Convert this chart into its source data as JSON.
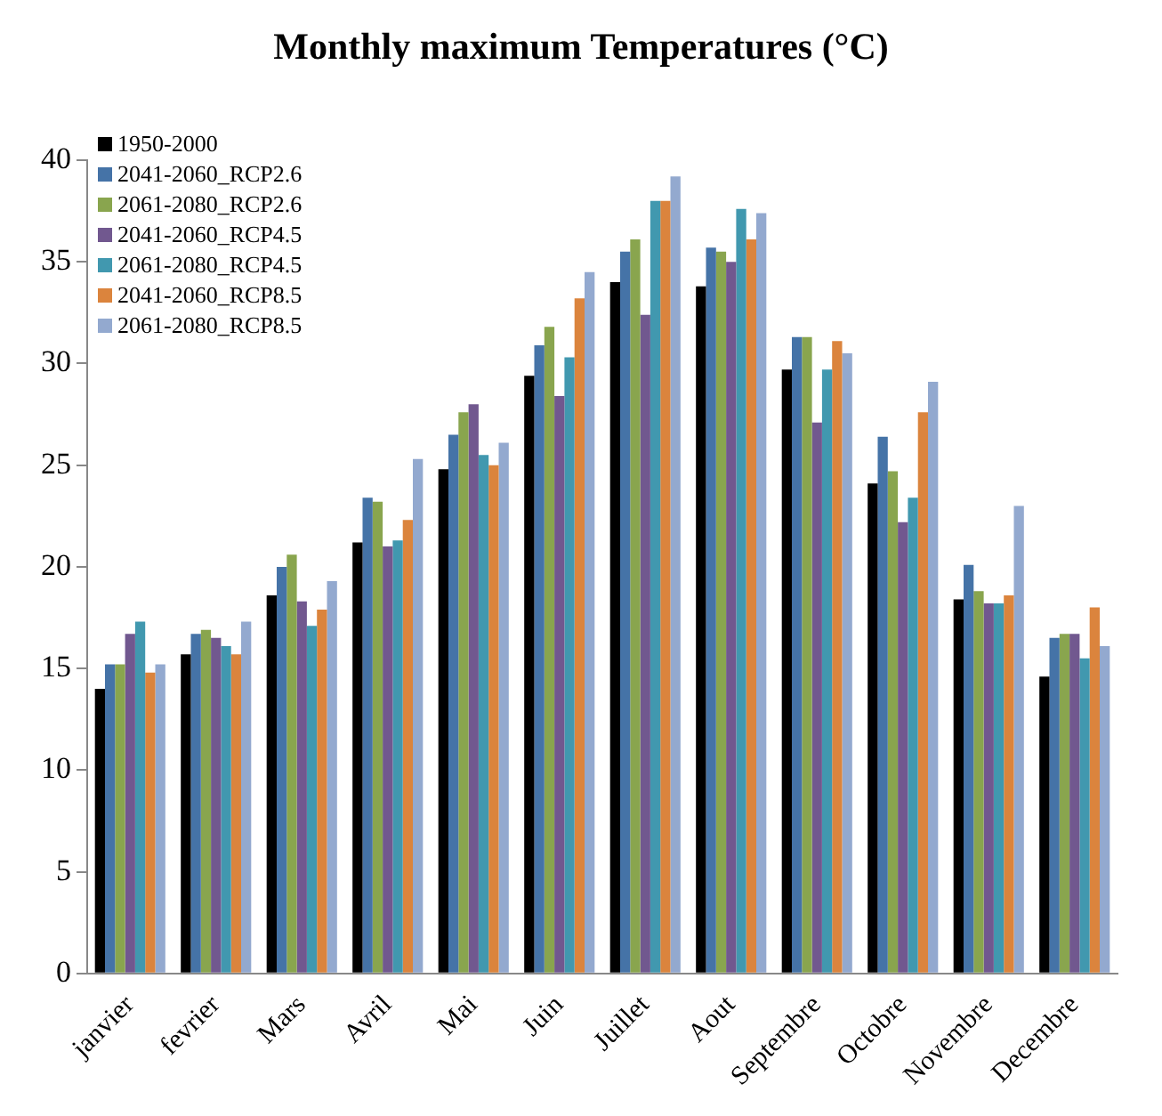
{
  "chart_data": {
    "type": "bar",
    "title": "Monthly maximum Temperatures (°C)",
    "categories": [
      "janvier",
      "fevrier",
      "Mars",
      "Avril",
      "Mai",
      "Juin",
      "Juillet",
      "Aout",
      "Septembre",
      "Octobre",
      "Novembre",
      "Decembre"
    ],
    "series": [
      {
        "name": "1950-2000",
        "color": "#000000",
        "values": [
          14.0,
          15.7,
          18.6,
          21.2,
          24.8,
          29.4,
          34.0,
          33.8,
          29.7,
          24.1,
          18.4,
          14.6
        ]
      },
      {
        "name": "2041-2060_RCP2.6",
        "color": "#4573a7",
        "values": [
          15.2,
          16.7,
          20.0,
          23.4,
          26.5,
          30.9,
          35.5,
          35.7,
          31.3,
          26.4,
          20.1,
          16.5
        ]
      },
      {
        "name": "2061-2080_RCP2.6",
        "color": "#89a54e",
        "values": [
          15.2,
          16.9,
          20.6,
          23.2,
          27.6,
          31.8,
          36.1,
          35.5,
          31.3,
          24.7,
          18.8,
          16.7
        ]
      },
      {
        "name": "2041-2060_RCP4.5",
        "color": "#71588f",
        "values": [
          16.7,
          16.5,
          18.3,
          21.0,
          28.0,
          28.4,
          32.4,
          35.0,
          27.1,
          22.2,
          18.2,
          16.7
        ]
      },
      {
        "name": "2061-2080_RCP4.5",
        "color": "#4198af",
        "values": [
          17.3,
          16.1,
          17.1,
          21.3,
          25.5,
          30.3,
          38.0,
          37.6,
          29.7,
          23.4,
          18.2,
          15.5
        ]
      },
      {
        "name": "2041-2060_RCP8.5",
        "color": "#db843d",
        "values": [
          14.8,
          15.7,
          17.9,
          22.3,
          25.0,
          33.2,
          38.0,
          36.1,
          31.1,
          27.6,
          18.6,
          18.0
        ]
      },
      {
        "name": "2061-2080_RCP8.5",
        "color": "#93a9cf",
        "values": [
          15.2,
          17.3,
          19.3,
          25.3,
          26.1,
          34.5,
          39.2,
          37.4,
          30.5,
          29.1,
          23.0,
          16.1
        ]
      }
    ],
    "ylim": [
      0,
      40
    ],
    "yticks": [
      0,
      5,
      10,
      15,
      20,
      25,
      30,
      35,
      40
    ],
    "grid": false,
    "legend": "top left"
  }
}
